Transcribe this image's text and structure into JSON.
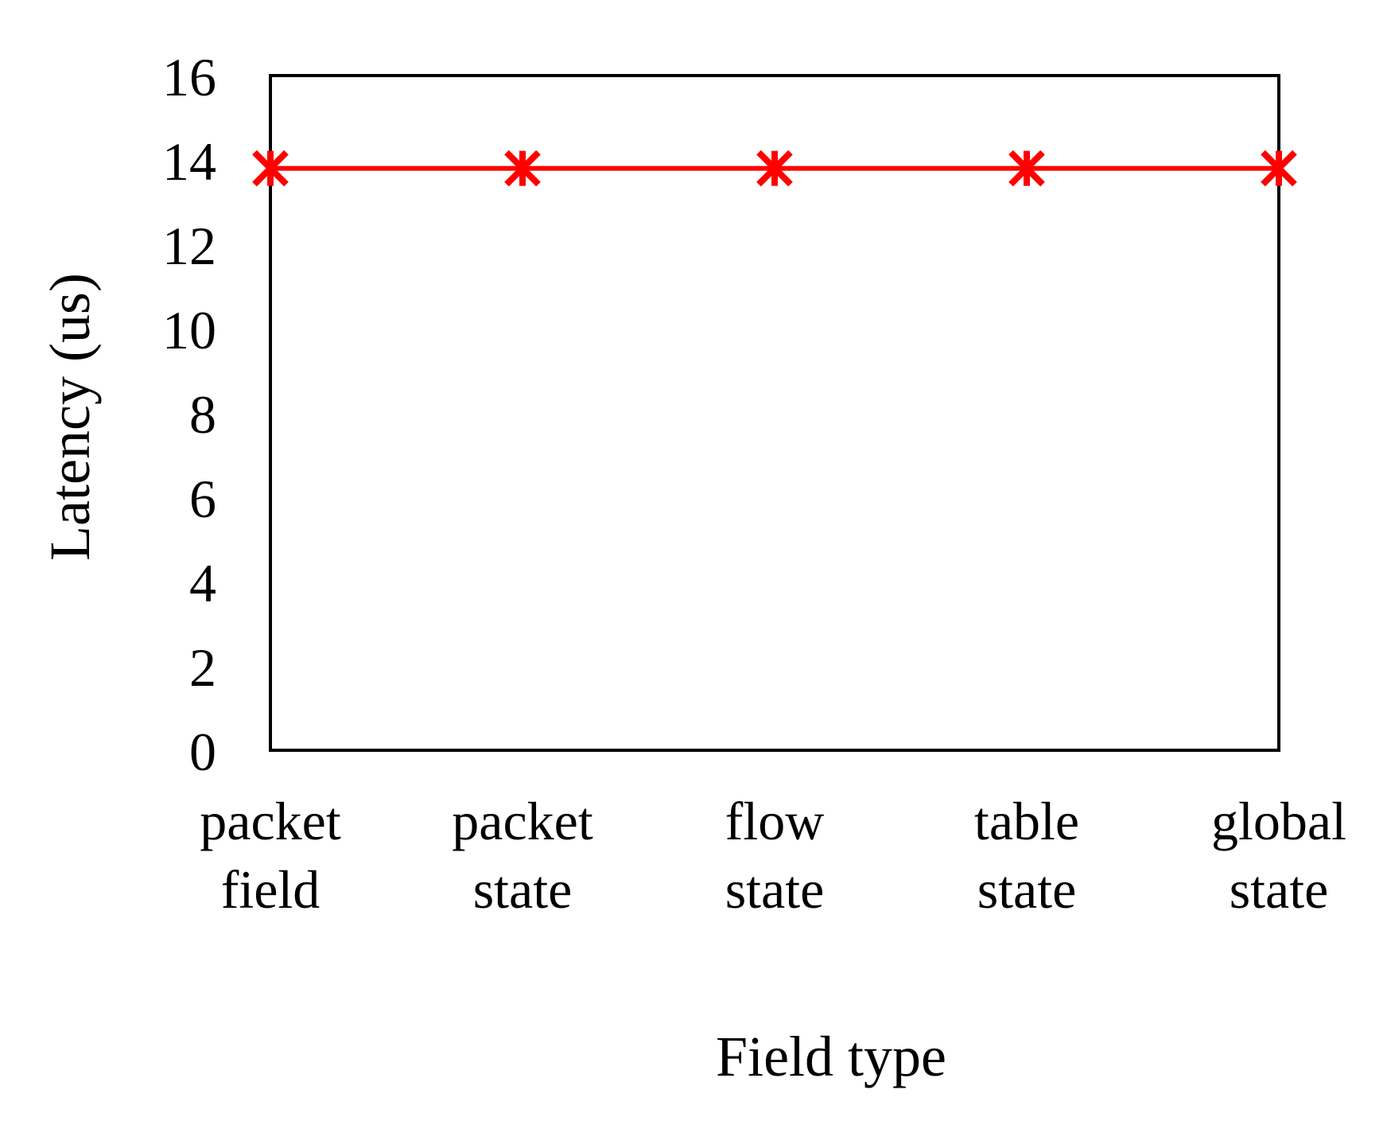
{
  "chart_data": {
    "type": "line",
    "categories": [
      [
        "packet",
        "field"
      ],
      [
        "packet",
        "state"
      ],
      [
        "flow",
        "state"
      ],
      [
        "table",
        "state"
      ],
      [
        "global",
        "state"
      ]
    ],
    "series": [
      {
        "values": [
          13.8,
          13.8,
          13.8,
          13.8,
          13.8
        ],
        "color": "#ff0000",
        "marker": "asterisk"
      }
    ],
    "title": "",
    "xlabel": "Field type",
    "ylabel": "Latency (us)",
    "ylim": [
      0,
      16
    ],
    "yticks": [
      "0",
      "2",
      "4",
      "6",
      "8",
      "10",
      "12",
      "14",
      "16"
    ],
    "grid": false,
    "legend": "none"
  }
}
